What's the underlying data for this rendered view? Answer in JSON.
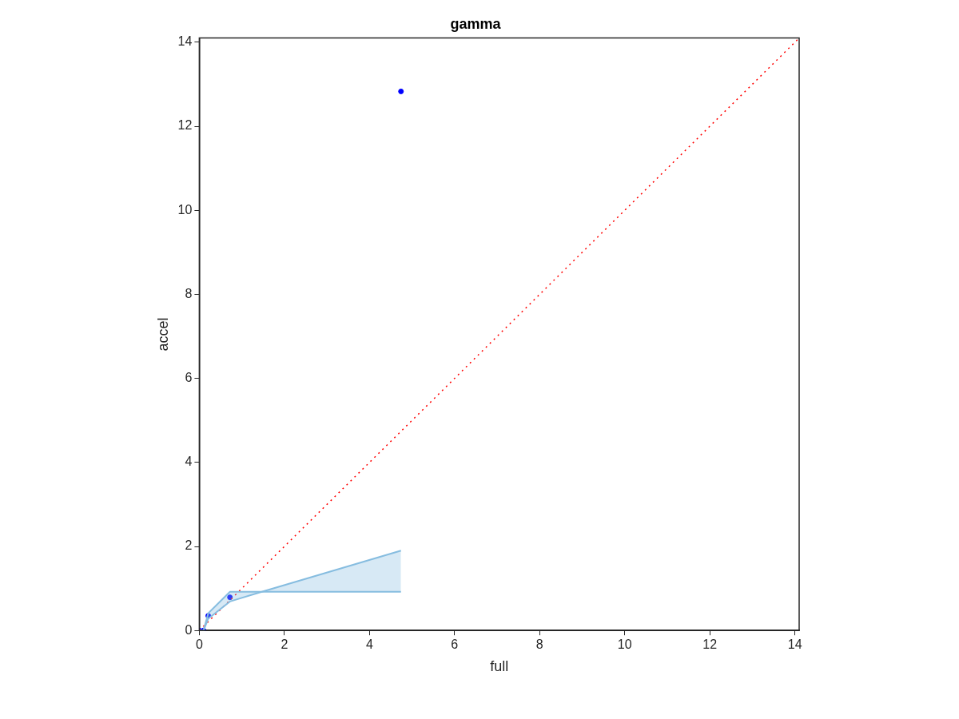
{
  "chart_data": {
    "type": "scatter",
    "title": "gamma",
    "xlabel": "full",
    "ylabel": "accel",
    "xlim": [
      0,
      14.1
    ],
    "ylim": [
      0,
      14.1
    ],
    "xticks": [
      0,
      2,
      4,
      6,
      8,
      10,
      12,
      14
    ],
    "yticks": [
      0,
      2,
      4,
      6,
      8,
      10,
      12,
      14
    ],
    "grid": false,
    "legend": false,
    "series": [
      {
        "type": "line",
        "color": "#86bde0",
        "x": [
          0,
          0.1,
          0.21,
          0.72,
          1.47,
          4.74
        ],
        "values": [
          0,
          0,
          0.41,
          0.92,
          0.92,
          0.92
        ],
        "lower": [
          0,
          0,
          0.28,
          0.69,
          0.92,
          0.92
        ],
        "upper": [
          0,
          0,
          0.41,
          0.92,
          0.92,
          1.9
        ],
        "marker": "none"
      },
      {
        "type": "line",
        "color": "#86bde0",
        "x": [
          0,
          0.1,
          0.21,
          0.72,
          1.47,
          4.74
        ],
        "values": [
          0,
          0,
          0.28,
          0.69,
          0.92,
          1.9
        ],
        "marker": "none"
      },
      {
        "type": "line",
        "color": "#ff0000",
        "x": [
          0,
          14.1
        ],
        "values": [
          0,
          14.1
        ],
        "line_style": "dotted",
        "marker": "none"
      },
      {
        "color": "#0000ff",
        "x": [
          0,
          0.1,
          0.21,
          0.72,
          4.74
        ],
        "values": [
          0,
          0,
          0.35,
          0.79,
          12.83
        ],
        "marker": "circle"
      }
    ]
  }
}
